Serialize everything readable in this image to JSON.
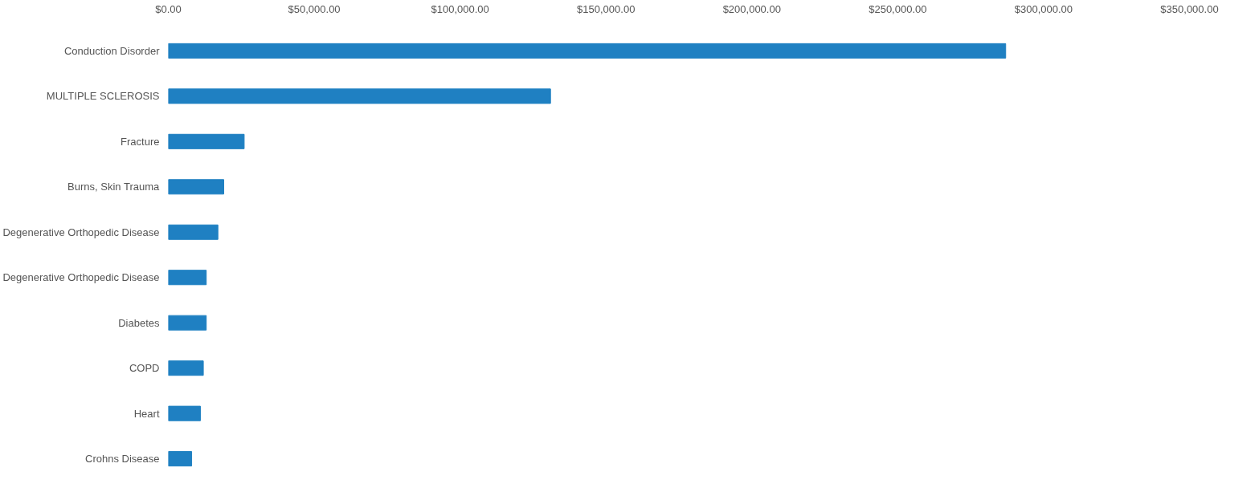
{
  "chart_data": {
    "type": "bar",
    "orientation": "horizontal",
    "categories": [
      "Conduction Disorder",
      "MULTIPLE SCLEROSIS",
      "Fracture",
      "Burns, Skin Trauma",
      "Degenerative Orthopedic Disease",
      "Degenerative Orthopedic Disease",
      "Diabetes",
      "COPD",
      "Heart",
      "Crohns Disease"
    ],
    "values": [
      287000,
      131000,
      26000,
      19000,
      17000,
      13000,
      13000,
      12000,
      11000,
      8000
    ],
    "color": "#1f80c2",
    "xlim": [
      0,
      350000
    ],
    "xticks": [
      {
        "value": 0,
        "label": "$0.00"
      },
      {
        "value": 50000,
        "label": "$50,000.00"
      },
      {
        "value": 100000,
        "label": "$100,000.00"
      },
      {
        "value": 150000,
        "label": "$150,000.00"
      },
      {
        "value": 200000,
        "label": "$200,000.00"
      },
      {
        "value": 250000,
        "label": "$250,000.00"
      },
      {
        "value": 300000,
        "label": "$300,000.00"
      },
      {
        "value": 350000,
        "label": "$350,000.00"
      }
    ],
    "grid": false
  }
}
